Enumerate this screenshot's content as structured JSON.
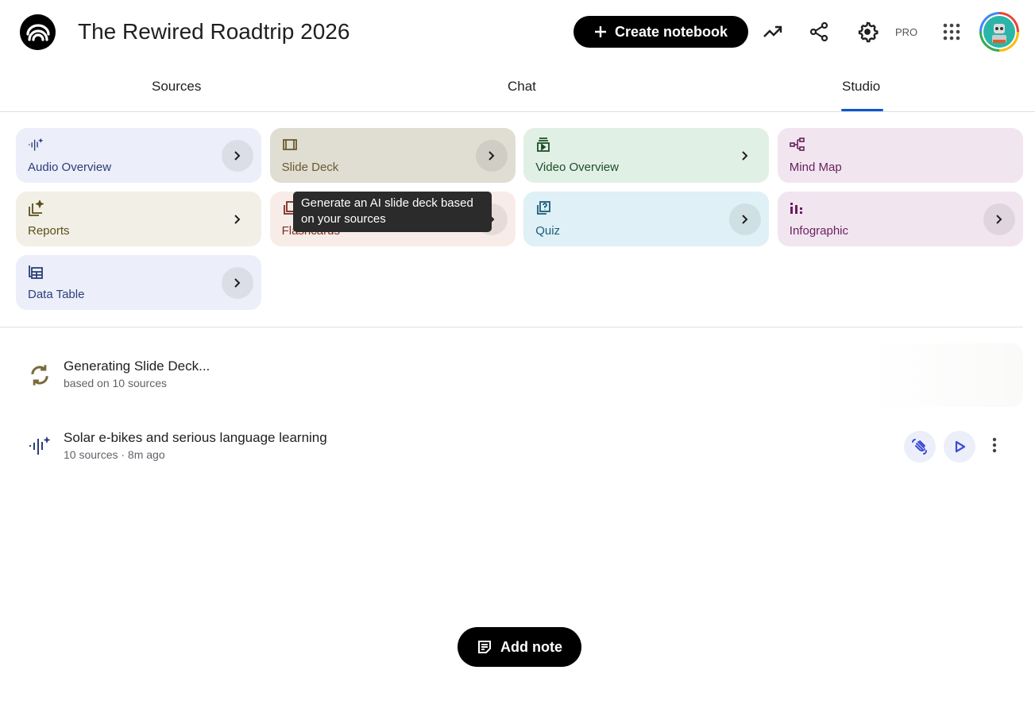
{
  "header": {
    "title": "The Rewired Roadtrip 2026",
    "create_label": "Create notebook",
    "pro_label": "PRO",
    "icons": [
      "analytics-icon",
      "share-icon",
      "settings-icon",
      "apps-grid-icon"
    ]
  },
  "tabs": [
    {
      "label": "Sources"
    },
    {
      "label": "Chat"
    },
    {
      "label": "Studio",
      "active": true
    }
  ],
  "studio_cards": [
    {
      "label": "Audio Overview",
      "icon": "audio-waveform-icon",
      "bg": "#eceff9",
      "color": "#2c3e7a"
    },
    {
      "label": "Slide Deck",
      "icon": "slides-icon",
      "bg": "#e0ddd3",
      "color": "#6b5a2d"
    },
    {
      "label": "Video Overview",
      "icon": "video-icon",
      "bg": "#e1f0e5",
      "color": "#1e4d2b"
    },
    {
      "label": "Mind Map",
      "icon": "mind-map-icon",
      "bg": "#f1e6f0",
      "color": "#6c1e5c"
    },
    {
      "label": "Reports",
      "icon": "reports-icon",
      "bg": "#f2f0e6",
      "color": "#5c4f1e"
    },
    {
      "label": "Flashcards",
      "icon": "flashcards-icon",
      "bg": "#f8ece9",
      "color": "#7a2e22"
    },
    {
      "label": "Quiz",
      "icon": "quiz-icon",
      "bg": "#dff0f6",
      "color": "#1b5e7a"
    },
    {
      "label": "Infographic",
      "icon": "infographic-icon",
      "bg": "#f1e6f0",
      "color": "#6c1e5c"
    },
    {
      "label": "Data Table",
      "icon": "data-table-icon",
      "bg": "#eceff9",
      "color": "#2c3e7a"
    }
  ],
  "tooltip": "Generate an AI slide deck based on your sources",
  "outputs": [
    {
      "title": "Generating Slide Deck...",
      "subtitle": "based on 10 sources",
      "icon": "sync-icon"
    },
    {
      "title": "Solar e-bikes and serious language learning",
      "subtitle": "10 sources · 8m ago",
      "icon": "audio-waveform-icon"
    }
  ],
  "add_note_label": "Add note",
  "accent": "#0b57d0"
}
